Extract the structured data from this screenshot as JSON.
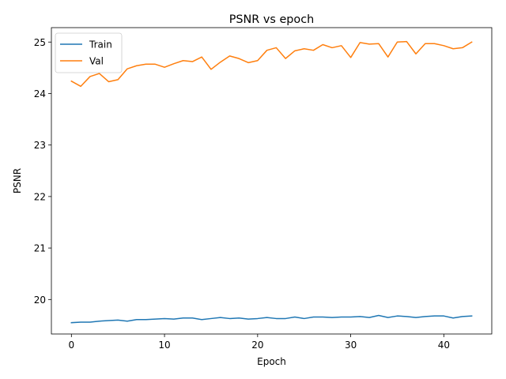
{
  "chart_data": {
    "type": "line",
    "title": "PSNR vs epoch",
    "xlabel": "Epoch",
    "ylabel": "PSNR",
    "xlim": [
      -2.15,
      45.15
    ],
    "ylim": [
      19.33,
      25.28
    ],
    "xticks": [
      0,
      10,
      20,
      30,
      40
    ],
    "yticks": [
      20,
      21,
      22,
      23,
      24,
      25
    ],
    "grid": false,
    "legend_position": "upper-left",
    "x": [
      0,
      1,
      2,
      3,
      4,
      5,
      6,
      7,
      8,
      9,
      10,
      11,
      12,
      13,
      14,
      15,
      16,
      17,
      18,
      19,
      20,
      21,
      22,
      23,
      24,
      25,
      26,
      27,
      28,
      29,
      30,
      31,
      32,
      33,
      34,
      35,
      36,
      37,
      38,
      39,
      40,
      41,
      42,
      43
    ],
    "series": [
      {
        "name": "Train",
        "color": "#1f77b4",
        "values": [
          19.55,
          19.56,
          19.56,
          19.58,
          19.59,
          19.6,
          19.58,
          19.61,
          19.61,
          19.62,
          19.63,
          19.62,
          19.64,
          19.64,
          19.61,
          19.63,
          19.65,
          19.63,
          19.64,
          19.62,
          19.63,
          19.65,
          19.63,
          19.63,
          19.66,
          19.63,
          19.66,
          19.66,
          19.65,
          19.66,
          19.66,
          19.67,
          19.65,
          19.69,
          19.65,
          19.68,
          19.67,
          19.65,
          19.67,
          19.68,
          19.68,
          19.64,
          19.67,
          19.68
        ]
      },
      {
        "name": "Val",
        "color": "#ff7f0e",
        "values": [
          24.24,
          24.14,
          24.33,
          24.39,
          24.23,
          24.27,
          24.48,
          24.54,
          24.57,
          24.57,
          24.51,
          24.58,
          24.64,
          24.62,
          24.71,
          24.47,
          24.61,
          24.73,
          24.68,
          24.6,
          24.64,
          24.84,
          24.89,
          24.68,
          24.83,
          24.87,
          24.84,
          24.95,
          24.89,
          24.93,
          24.7,
          24.99,
          24.96,
          24.97,
          24.71,
          25.0,
          25.01,
          24.77,
          24.97,
          24.97,
          24.93,
          24.87,
          24.89,
          25.0
        ]
      }
    ]
  }
}
